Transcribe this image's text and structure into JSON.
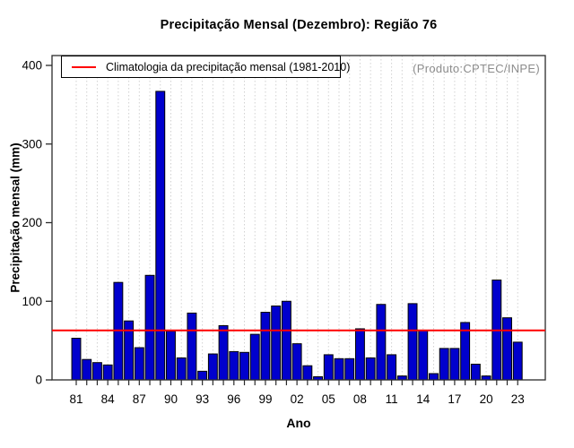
{
  "chart_data": {
    "type": "bar",
    "title": "Precipitação Mensal (Dezembro): Região 76",
    "xlabel": "Ano",
    "ylabel": "Precipitação mensal (mm)",
    "watermark": "(Produto:CPTEC/INPE)",
    "legend": {
      "label": "Climatologia da precipitação mensal (1981-2010)",
      "position": "top-left",
      "line_color": "#ff0000"
    },
    "ylim": [
      0,
      400
    ],
    "yticks": [
      0,
      100,
      200,
      300,
      400
    ],
    "xtick_labels": [
      "81",
      "84",
      "87",
      "90",
      "93",
      "96",
      "99",
      "02",
      "05",
      "08",
      "11",
      "14",
      "17",
      "20",
      "23"
    ],
    "xtick_label_every": 3,
    "categories": [
      1981,
      1982,
      1983,
      1984,
      1985,
      1986,
      1987,
      1988,
      1989,
      1990,
      1991,
      1992,
      1993,
      1994,
      1995,
      1996,
      1997,
      1998,
      1999,
      2000,
      2001,
      2002,
      2003,
      2004,
      2005,
      2006,
      2007,
      2008,
      2009,
      2010,
      2011,
      2012,
      2013,
      2014,
      2015,
      2016,
      2017,
      2018,
      2019,
      2020,
      2021,
      2022,
      2023
    ],
    "values": [
      53,
      26,
      22,
      19,
      124,
      75,
      41,
      133,
      367,
      62,
      28,
      85,
      11,
      33,
      69,
      36,
      35,
      58,
      86,
      94,
      100,
      46,
      18,
      4,
      32,
      27,
      27,
      65,
      28,
      96,
      32,
      5,
      97,
      63,
      8,
      40,
      40,
      73,
      20,
      5,
      127,
      79,
      48
    ],
    "climatology": {
      "value": 63,
      "color": "#ff0000"
    },
    "bar_color": "#0000cd",
    "bar_border_color": "#000000",
    "grid": {
      "vertical_dotted_per_year": true,
      "color": "#d2d2d2"
    },
    "axis_color": "#2b2b2b"
  }
}
